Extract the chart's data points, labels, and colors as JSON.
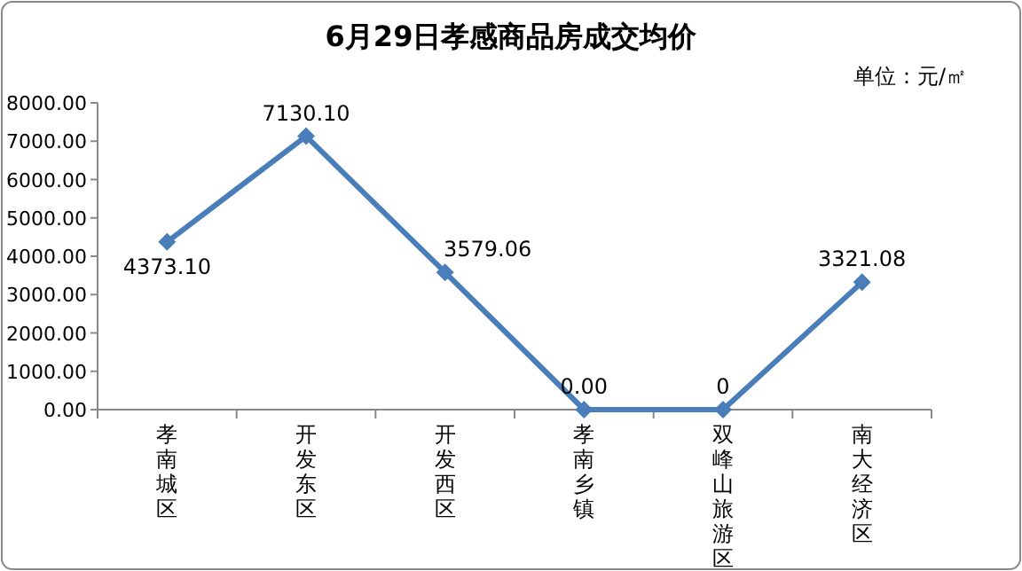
{
  "chart_data": {
    "type": "line",
    "title": "6月29日孝感商品房成交均价",
    "annotations": [
      "单位：元/㎡"
    ],
    "categories": [
      "孝南城区",
      "开发东区",
      "开发西区",
      "孝南乡镇",
      "双峰山旅游区",
      "南大经济区"
    ],
    "series": [
      {
        "color": "#4a7ebb",
        "values": [
          4373.1,
          7130.1,
          3579.06,
          0,
          0,
          3321.08
        ],
        "value_labels": [
          "4373.10",
          "7130.10",
          "3579.06",
          "0.00",
          "0",
          "3321.08"
        ]
      }
    ],
    "ylim": [
      0,
      8000
    ],
    "yticks": [
      {
        "value": 0,
        "label": "0.00"
      },
      {
        "value": 1000,
        "label": "1000.00"
      },
      {
        "value": 2000,
        "label": "2000.00"
      },
      {
        "value": 3000,
        "label": "3000.00"
      },
      {
        "value": 4000,
        "label": "4000.00"
      },
      {
        "value": 5000,
        "label": "5000.00"
      },
      {
        "value": 6000,
        "label": "6000.00"
      },
      {
        "value": 7000,
        "label": "7000.00"
      },
      {
        "value": 8000,
        "label": "8000.00"
      }
    ],
    "marker": "diamond"
  }
}
